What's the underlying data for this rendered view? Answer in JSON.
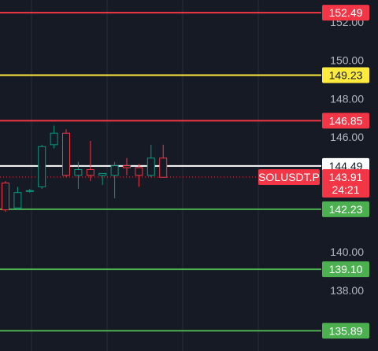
{
  "chart_data": {
    "type": "candlestick",
    "symbol": "SOLUSDT.P",
    "countdown": "24:21",
    "current_price": 143.91,
    "price_ticks": [
      {
        "value": 152.0,
        "label": "152.00"
      },
      {
        "value": 150.0,
        "label": "150.00"
      },
      {
        "value": 148.0,
        "label": "148.00"
      },
      {
        "value": 146.0,
        "label": "146.00"
      },
      {
        "value": 140.0,
        "label": "140.00"
      },
      {
        "value": 138.0,
        "label": "138.00"
      }
    ],
    "horizontal_levels": [
      {
        "value": 152.49,
        "label": "152.49",
        "color": "#f23645"
      },
      {
        "value": 149.23,
        "label": "149.23",
        "color": "#ffeb3b"
      },
      {
        "value": 146.85,
        "label": "146.85",
        "color": "#f23645"
      },
      {
        "value": 144.49,
        "label": "144.49",
        "color": "#ffffff"
      },
      {
        "value": 142.23,
        "label": "142.23",
        "color": "#4caf50"
      },
      {
        "value": 139.1,
        "label": "139.10",
        "color": "#4caf50"
      },
      {
        "value": 135.89,
        "label": "135.89",
        "color": "#4caf50"
      }
    ],
    "candles": [
      {
        "open": 143.6,
        "high": 143.7,
        "low": 142.1,
        "close": 142.2
      },
      {
        "open": 142.3,
        "high": 143.4,
        "low": 142.2,
        "close": 143.1
      },
      {
        "open": 143.2,
        "high": 143.3,
        "low": 143.1,
        "close": 143.2
      },
      {
        "open": 143.4,
        "high": 145.6,
        "low": 143.3,
        "close": 145.5
      },
      {
        "open": 145.6,
        "high": 146.6,
        "low": 145.4,
        "close": 146.2
      },
      {
        "open": 146.2,
        "high": 146.4,
        "low": 143.9,
        "close": 144.0
      },
      {
        "open": 144.0,
        "high": 144.7,
        "low": 143.3,
        "close": 144.3
      },
      {
        "open": 144.3,
        "high": 145.8,
        "low": 143.7,
        "close": 144.0
      },
      {
        "open": 144.0,
        "high": 144.1,
        "low": 143.5,
        "close": 144.1
      },
      {
        "open": 144.0,
        "high": 144.7,
        "low": 142.8,
        "close": 144.5
      },
      {
        "open": 144.5,
        "high": 144.9,
        "low": 144.0,
        "close": 144.4
      },
      {
        "open": 144.4,
        "high": 144.6,
        "low": 143.4,
        "close": 144.0
      },
      {
        "open": 144.0,
        "high": 145.6,
        "low": 143.9,
        "close": 144.9
      },
      {
        "open": 144.9,
        "high": 145.6,
        "low": 143.9,
        "close": 143.9
      }
    ],
    "colors": {
      "background": "#161a25",
      "grid": "#2a2e39",
      "axis_text": "#b2b5be",
      "up": "#089981",
      "down": "#f23645"
    }
  }
}
